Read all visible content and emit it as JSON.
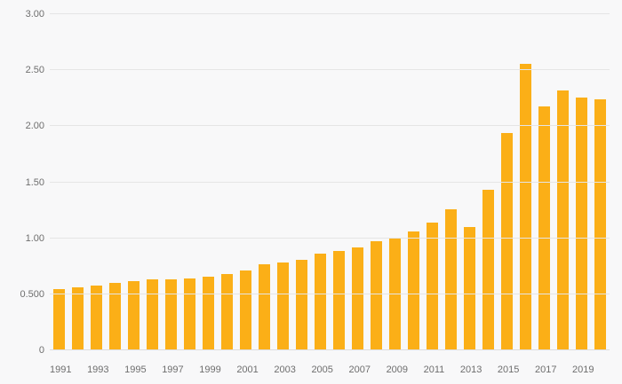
{
  "colors": {
    "bar": "#fbaf17",
    "background": "#f8f8f9",
    "gridline": "#e5e5e5",
    "text": "#6e6e6e"
  },
  "chart_data": {
    "type": "bar",
    "title": "",
    "xlabel": "",
    "ylabel": "",
    "ylim": [
      0,
      3
    ],
    "grid": true,
    "legend": false,
    "categories": [
      "1991",
      "1992",
      "1993",
      "1994",
      "1995",
      "1996",
      "1997",
      "1998",
      "1999",
      "2000",
      "2001",
      "2002",
      "2003",
      "2004",
      "2005",
      "2006",
      "2007",
      "2008",
      "2009",
      "2010",
      "2011",
      "2012",
      "2013",
      "2014",
      "2015",
      "2016",
      "2017",
      "2018",
      "2019",
      "2020"
    ],
    "values": [
      0.55,
      0.56,
      0.58,
      0.6,
      0.62,
      0.63,
      0.63,
      0.64,
      0.66,
      0.68,
      0.71,
      0.77,
      0.78,
      0.81,
      0.86,
      0.89,
      0.92,
      0.97,
      1.0,
      1.06,
      1.14,
      1.26,
      1.1,
      1.43,
      1.94,
      2.56,
      2.18,
      2.32,
      2.26,
      2.24
    ],
    "yticks": [
      {
        "value": 0,
        "label": "0"
      },
      {
        "value": 0.5,
        "label": "0.500"
      },
      {
        "value": 1.0,
        "label": "1.00"
      },
      {
        "value": 1.5,
        "label": "1.50"
      },
      {
        "value": 2.0,
        "label": "2.00"
      },
      {
        "value": 2.5,
        "label": "2.50"
      },
      {
        "value": 3.0,
        "label": "3.00"
      }
    ],
    "xtick_labels": [
      "1991",
      "1993",
      "1995",
      "1997",
      "1999",
      "2001",
      "2003",
      "2005",
      "2007",
      "2009",
      "2011",
      "2013",
      "2015",
      "2017",
      "2019"
    ]
  }
}
